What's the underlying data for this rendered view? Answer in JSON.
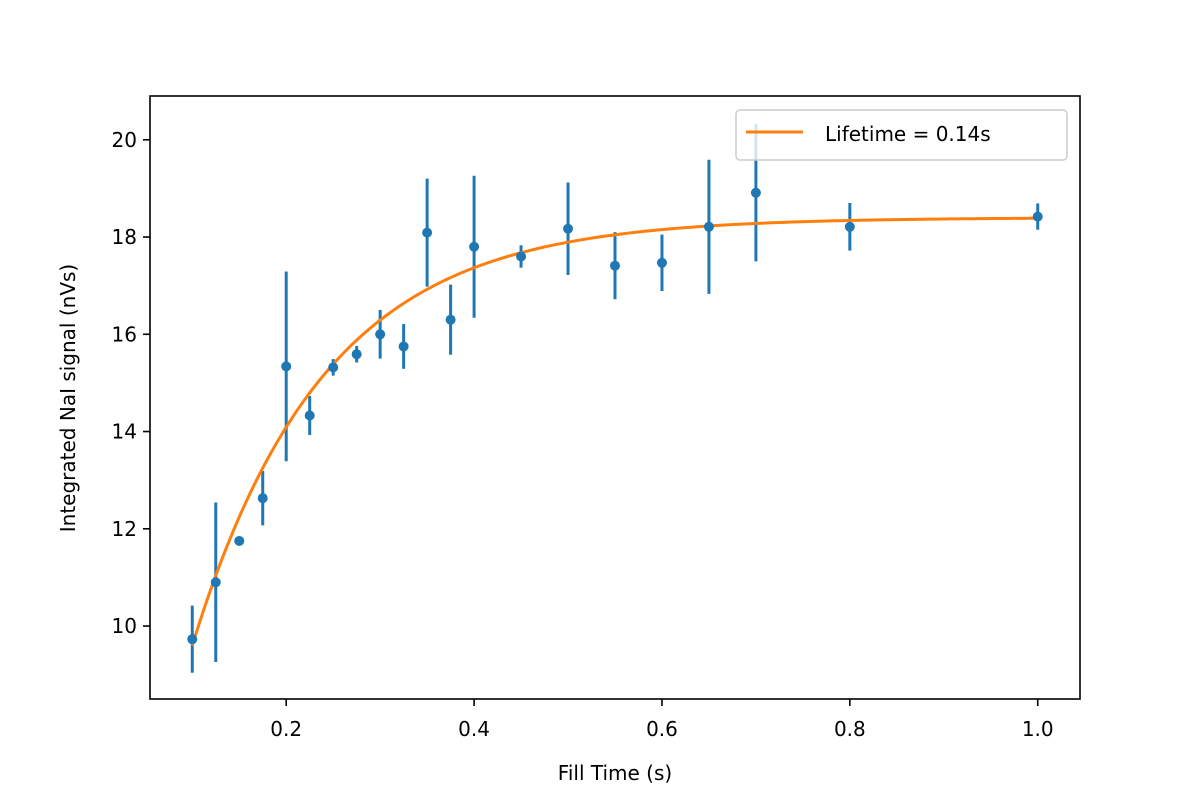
{
  "chart_data": {
    "type": "scatter",
    "title": "",
    "xlabel": "Fill Time (s)",
    "ylabel": "Integrated NaI signal (nVs)",
    "xlim": [
      0.055,
      1.045
    ],
    "ylim": [
      8.5,
      20.9
    ],
    "xticks": [
      0.2,
      0.4,
      0.6,
      0.8,
      1.0
    ],
    "xtick_labels": [
      "0.2",
      "0.4",
      "0.6",
      "0.8",
      "1.0"
    ],
    "yticks": [
      10,
      12,
      14,
      16,
      18,
      20
    ],
    "ytick_labels": [
      "10",
      "12",
      "14",
      "16",
      "18",
      "20"
    ],
    "grid": false,
    "legend_position": "top-right",
    "series": [
      {
        "name": "data",
        "kind": "errorbar",
        "color": "#1f77b4",
        "x": [
          0.1,
          0.125,
          0.15,
          0.175,
          0.2,
          0.225,
          0.25,
          0.275,
          0.3,
          0.325,
          0.35,
          0.375,
          0.4,
          0.45,
          0.5,
          0.55,
          0.6,
          0.65,
          0.7,
          0.8,
          1.0
        ],
        "y": [
          9.73,
          10.9,
          11.75,
          12.63,
          15.34,
          14.33,
          15.32,
          15.59,
          16.0,
          15.75,
          18.09,
          16.3,
          17.8,
          17.6,
          18.17,
          17.41,
          17.47,
          18.21,
          18.91,
          18.21,
          18.42
        ],
        "yerr": [
          0.69,
          1.64,
          0.05,
          0.56,
          1.95,
          0.4,
          0.17,
          0.17,
          0.5,
          0.46,
          1.11,
          0.72,
          1.46,
          0.23,
          0.95,
          0.69,
          0.58,
          1.38,
          1.41,
          0.49,
          0.27
        ]
      },
      {
        "name": "Lifetime = 0.14s",
        "kind": "fit-line",
        "color": "#ff7f0e",
        "model": "plateau - (plateau - start) * exp(-(x - 0.1) / tau)",
        "tau": 0.14,
        "plateau": 18.4,
        "start": 9.6,
        "x_range": [
          0.1,
          1.0
        ]
      }
    ],
    "legend": [
      {
        "label": "Lifetime = 0.14s",
        "color": "#ff7f0e"
      }
    ]
  }
}
